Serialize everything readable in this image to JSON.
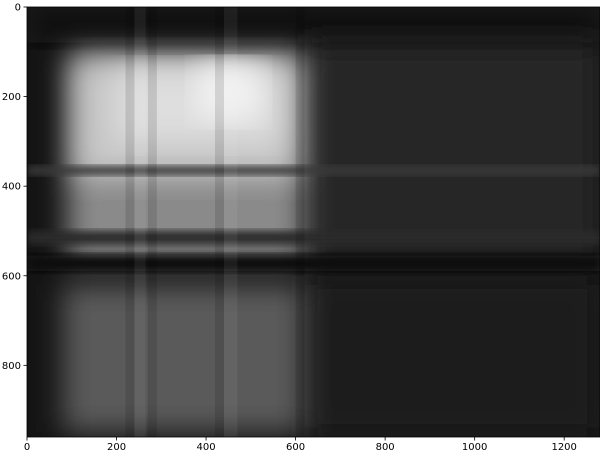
{
  "chart_data": {
    "type": "image",
    "xlim": [
      0,
      1280
    ],
    "ylim": [
      960,
      0
    ],
    "xticks": [
      0,
      200,
      400,
      600,
      800,
      1000,
      1200
    ],
    "yticks": [
      0,
      200,
      400,
      600,
      800
    ],
    "colormap": "gray"
  }
}
